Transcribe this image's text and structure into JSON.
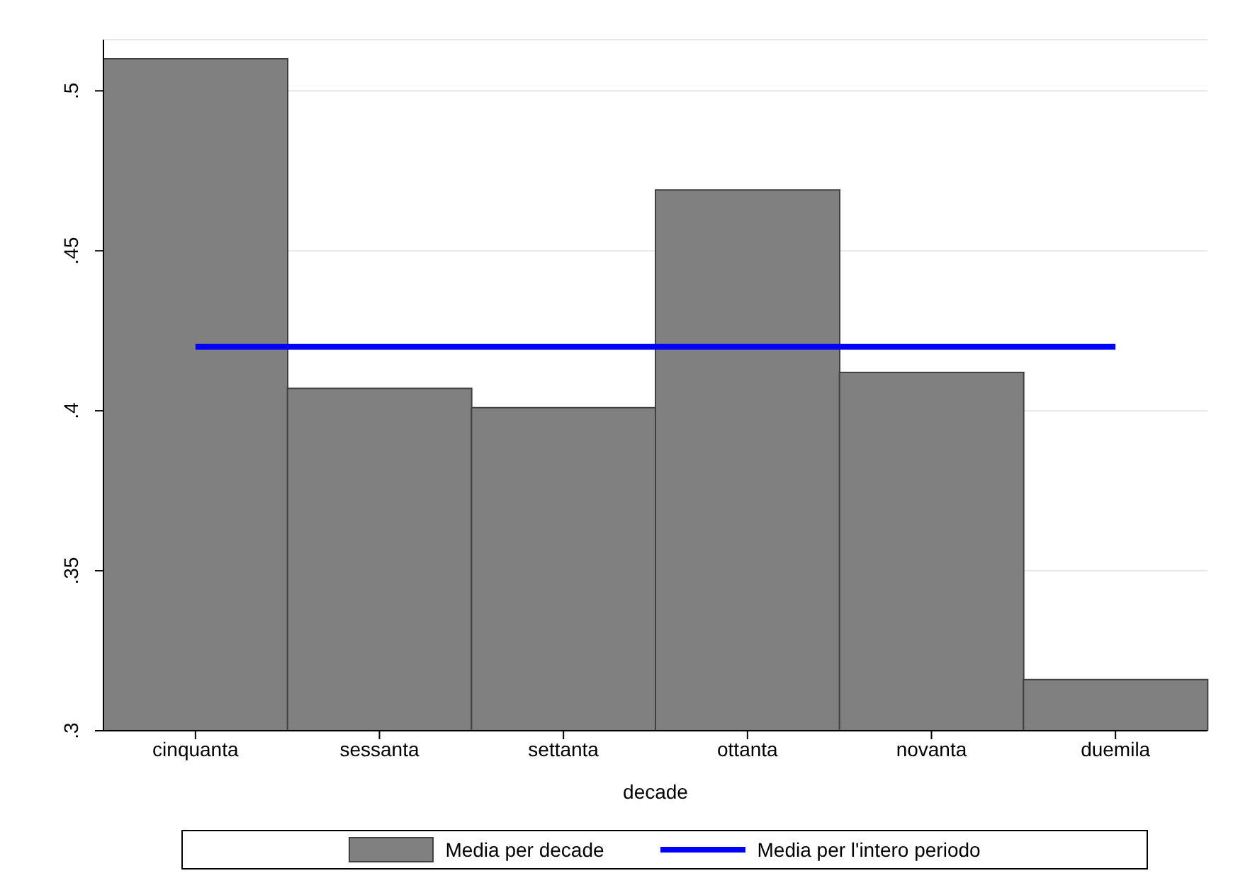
{
  "chart_data": {
    "type": "bar",
    "xlabel": "decade",
    "categories": [
      "cinquanta",
      "sessanta",
      "settanta",
      "ottanta",
      "novanta",
      "duemila"
    ],
    "series": [
      {
        "name": "Media per decade",
        "color": "#808080",
        "values": [
          0.51,
          0.407,
          0.401,
          0.469,
          0.412,
          0.316
        ]
      },
      {
        "name": "Media per l'intero periodo",
        "type": "line",
        "color": "#0000ff",
        "values": [
          0.42,
          0.42,
          0.42,
          0.42,
          0.42,
          0.42
        ]
      }
    ],
    "ylim": [
      0.3,
      0.516
    ],
    "yticks": [
      {
        "value": 0.3,
        "label": ".3"
      },
      {
        "value": 0.35,
        "label": ".35"
      },
      {
        "value": 0.4,
        "label": ".4"
      },
      {
        "value": 0.45,
        "label": ".45"
      },
      {
        "value": 0.5,
        "label": ".5"
      }
    ],
    "grid": "y",
    "legend": "bottom",
    "marker": "none",
    "line_style": "solid"
  }
}
